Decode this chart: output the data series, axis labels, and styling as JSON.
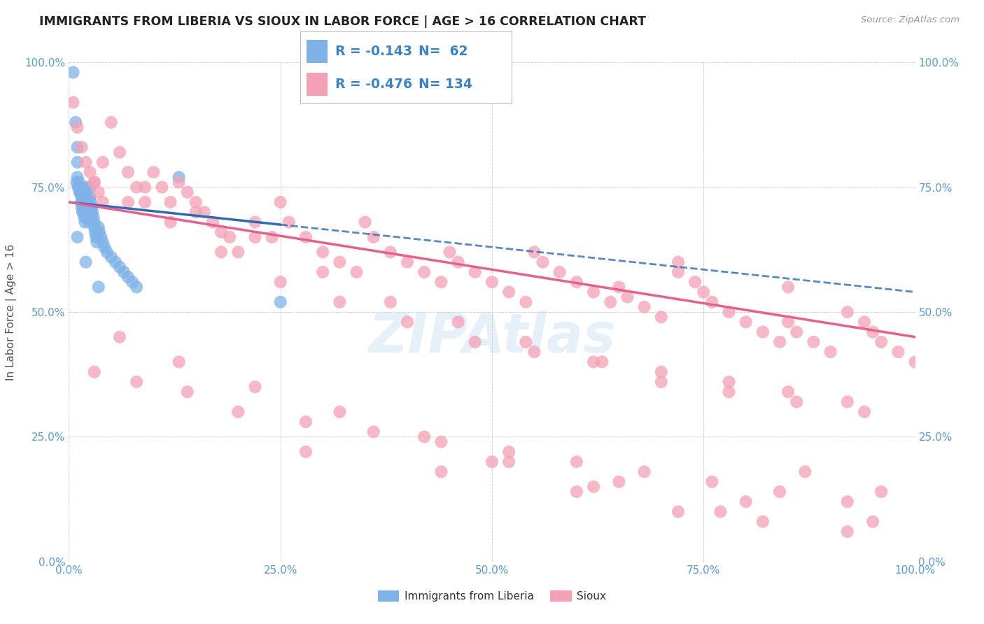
{
  "title": "IMMIGRANTS FROM LIBERIA VS SIOUX IN LABOR FORCE | AGE > 16 CORRELATION CHART",
  "source_text": "Source: ZipAtlas.com",
  "ylabel": "In Labor Force | Age > 16",
  "xlim": [
    0.0,
    1.0
  ],
  "ylim": [
    0.0,
    1.0
  ],
  "xticks": [
    0.0,
    0.25,
    0.5,
    0.75,
    1.0
  ],
  "yticks": [
    0.0,
    0.25,
    0.5,
    0.75,
    1.0
  ],
  "xtick_labels": [
    "0.0%",
    "25.0%",
    "50.0%",
    "75.0%",
    "100.0%"
  ],
  "ytick_labels": [
    "0.0%",
    "25.0%",
    "50.0%",
    "75.0%",
    "100.0%"
  ],
  "blue_R": -0.143,
  "blue_N": 62,
  "pink_R": -0.476,
  "pink_N": 134,
  "blue_color": "#7EB2E8",
  "pink_color": "#F4A0B5",
  "blue_line_color": "#2B6CB8",
  "pink_line_color": "#E8608A",
  "watermark": "ZIPAtlas",
  "legend_label_blue": "Immigrants from Liberia",
  "legend_label_pink": "Sioux",
  "blue_scatter_x": [
    0.005,
    0.008,
    0.01,
    0.01,
    0.01,
    0.012,
    0.012,
    0.013,
    0.014,
    0.015,
    0.015,
    0.015,
    0.016,
    0.016,
    0.017,
    0.018,
    0.018,
    0.019,
    0.02,
    0.02,
    0.02,
    0.021,
    0.022,
    0.023,
    0.023,
    0.024,
    0.025,
    0.025,
    0.026,
    0.027,
    0.028,
    0.029,
    0.03,
    0.03,
    0.031,
    0.032,
    0.033,
    0.035,
    0.036,
    0.038,
    0.04,
    0.042,
    0.045,
    0.05,
    0.055,
    0.06,
    0.065,
    0.07,
    0.075,
    0.08,
    0.009,
    0.011,
    0.013,
    0.016,
    0.019,
    0.022,
    0.026,
    0.035,
    0.13,
    0.25,
    0.01,
    0.02
  ],
  "blue_scatter_y": [
    0.98,
    0.88,
    0.83,
    0.8,
    0.77,
    0.76,
    0.75,
    0.74,
    0.74,
    0.73,
    0.72,
    0.71,
    0.7,
    0.72,
    0.71,
    0.7,
    0.69,
    0.68,
    0.75,
    0.74,
    0.73,
    0.72,
    0.71,
    0.7,
    0.69,
    0.68,
    0.75,
    0.73,
    0.72,
    0.71,
    0.7,
    0.69,
    0.68,
    0.67,
    0.66,
    0.65,
    0.64,
    0.67,
    0.66,
    0.65,
    0.64,
    0.63,
    0.62,
    0.61,
    0.6,
    0.59,
    0.58,
    0.57,
    0.56,
    0.55,
    0.76,
    0.75,
    0.74,
    0.73,
    0.72,
    0.71,
    0.7,
    0.55,
    0.77,
    0.52,
    0.65,
    0.6
  ],
  "pink_scatter_x": [
    0.005,
    0.01,
    0.015,
    0.02,
    0.025,
    0.03,
    0.035,
    0.04,
    0.05,
    0.06,
    0.07,
    0.08,
    0.09,
    0.1,
    0.11,
    0.12,
    0.13,
    0.14,
    0.15,
    0.16,
    0.17,
    0.18,
    0.19,
    0.2,
    0.22,
    0.24,
    0.25,
    0.26,
    0.28,
    0.3,
    0.32,
    0.34,
    0.35,
    0.36,
    0.38,
    0.4,
    0.42,
    0.44,
    0.45,
    0.46,
    0.48,
    0.5,
    0.52,
    0.54,
    0.55,
    0.56,
    0.58,
    0.6,
    0.62,
    0.64,
    0.65,
    0.66,
    0.68,
    0.7,
    0.72,
    0.74,
    0.75,
    0.76,
    0.78,
    0.8,
    0.82,
    0.84,
    0.85,
    0.86,
    0.88,
    0.9,
    0.92,
    0.94,
    0.95,
    0.96,
    0.98,
    1.0,
    0.03,
    0.07,
    0.12,
    0.18,
    0.25,
    0.32,
    0.4,
    0.48,
    0.55,
    0.63,
    0.7,
    0.78,
    0.85,
    0.92,
    0.04,
    0.09,
    0.15,
    0.22,
    0.3,
    0.38,
    0.46,
    0.54,
    0.62,
    0.7,
    0.78,
    0.86,
    0.94,
    0.03,
    0.08,
    0.14,
    0.2,
    0.28,
    0.36,
    0.44,
    0.52,
    0.6,
    0.68,
    0.76,
    0.84,
    0.92,
    0.06,
    0.13,
    0.22,
    0.32,
    0.42,
    0.52,
    0.62,
    0.72,
    0.82,
    0.92,
    0.28,
    0.44,
    0.6,
    0.77,
    0.87,
    0.96,
    0.5,
    0.65,
    0.8,
    0.95,
    0.72,
    0.85
  ],
  "pink_scatter_y": [
    0.92,
    0.87,
    0.83,
    0.8,
    0.78,
    0.76,
    0.74,
    0.72,
    0.88,
    0.82,
    0.78,
    0.75,
    0.72,
    0.78,
    0.75,
    0.72,
    0.76,
    0.74,
    0.72,
    0.7,
    0.68,
    0.66,
    0.65,
    0.62,
    0.68,
    0.65,
    0.72,
    0.68,
    0.65,
    0.62,
    0.6,
    0.58,
    0.68,
    0.65,
    0.62,
    0.6,
    0.58,
    0.56,
    0.62,
    0.6,
    0.58,
    0.56,
    0.54,
    0.52,
    0.62,
    0.6,
    0.58,
    0.56,
    0.54,
    0.52,
    0.55,
    0.53,
    0.51,
    0.49,
    0.58,
    0.56,
    0.54,
    0.52,
    0.5,
    0.48,
    0.46,
    0.44,
    0.48,
    0.46,
    0.44,
    0.42,
    0.5,
    0.48,
    0.46,
    0.44,
    0.42,
    0.4,
    0.76,
    0.72,
    0.68,
    0.62,
    0.56,
    0.52,
    0.48,
    0.44,
    0.42,
    0.4,
    0.38,
    0.36,
    0.34,
    0.32,
    0.8,
    0.75,
    0.7,
    0.65,
    0.58,
    0.52,
    0.48,
    0.44,
    0.4,
    0.36,
    0.34,
    0.32,
    0.3,
    0.38,
    0.36,
    0.34,
    0.3,
    0.28,
    0.26,
    0.24,
    0.22,
    0.2,
    0.18,
    0.16,
    0.14,
    0.12,
    0.45,
    0.4,
    0.35,
    0.3,
    0.25,
    0.2,
    0.15,
    0.1,
    0.08,
    0.06,
    0.22,
    0.18,
    0.14,
    0.1,
    0.18,
    0.14,
    0.2,
    0.16,
    0.12,
    0.08,
    0.6,
    0.55
  ],
  "blue_line_start_x": 0.0,
  "blue_line_start_y": 0.72,
  "blue_line_end_x": 0.25,
  "blue_line_end_y": 0.67,
  "blue_line_solid_end_x": 0.25,
  "blue_line_dashed_end_x": 1.0,
  "blue_line_dashed_end_y": 0.54,
  "pink_line_start_x": 0.0,
  "pink_line_start_y": 0.72,
  "pink_line_end_x": 1.0,
  "pink_line_end_y": 0.45
}
